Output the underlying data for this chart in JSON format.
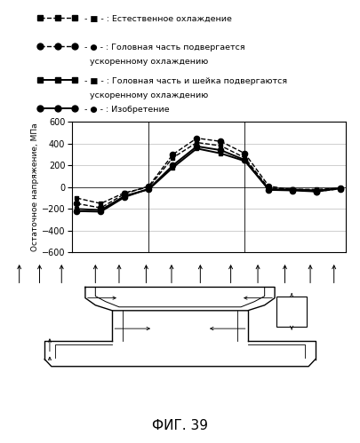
{
  "title": "ФИГ. 39",
  "ylabel": "Остаточное напряжение, МПа",
  "ylim": [
    -600,
    600
  ],
  "yticks": [
    -600,
    -400,
    -200,
    0,
    200,
    400,
    600
  ],
  "x_data": [
    0,
    1,
    2,
    3,
    4,
    5,
    6,
    7,
    8,
    9,
    10,
    11
  ],
  "series": [
    {
      "label_line1": "- ■ - : Естественное охлаждение",
      "label_line2": "",
      "linestyle": "dashed",
      "marker": "s",
      "y": [
        -100,
        -150,
        -50,
        0,
        270,
        410,
        380,
        270,
        -10,
        -20,
        -20,
        -10
      ]
    },
    {
      "label_line1": "- ● - : Головная часть подвергается",
      "label_line2": "  ускоренному охлаждению",
      "linestyle": "dashed",
      "marker": "o",
      "y": [
        -150,
        -190,
        -60,
        10,
        300,
        450,
        420,
        310,
        10,
        -25,
        -40,
        -15
      ]
    },
    {
      "label_line1": "- ■ - : Головная часть и шейка подвергаются",
      "label_line2": "  ускоренному охлаждению",
      "linestyle": "solid",
      "marker": "s",
      "y": [
        -200,
        -210,
        -80,
        -20,
        180,
        355,
        310,
        240,
        -20,
        -20,
        -30,
        -10
      ]
    },
    {
      "label_line1": "- ● - : Изобретение",
      "label_line2": "",
      "linestyle": "solid",
      "marker": "o",
      "y": [
        -220,
        -225,
        -90,
        -15,
        200,
        375,
        340,
        250,
        -25,
        -30,
        -40,
        -10
      ]
    }
  ],
  "vlines_x": [
    3,
    7
  ],
  "background_color": "#ffffff"
}
